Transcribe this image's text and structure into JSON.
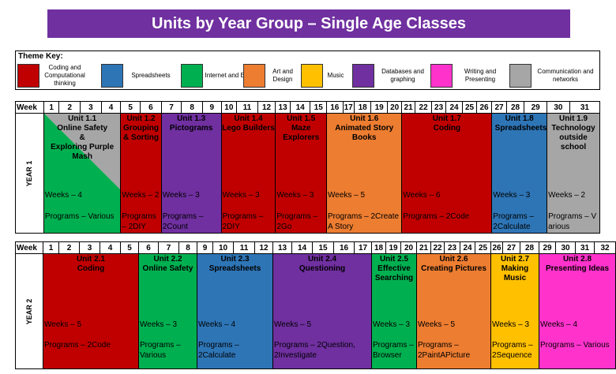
{
  "title": "Units by Year Group – Single Age Classes",
  "theme_key": {
    "title": "Theme Key:",
    "items": [
      {
        "label": "Coding and Computational thinking",
        "color": "#c00000"
      },
      {
        "label": "Spreadsheets",
        "color": "#2e75b6"
      },
      {
        "label": "Internet and Email",
        "color": "#00b050"
      },
      {
        "label": "Art and Design",
        "color": "#ed7d31"
      },
      {
        "label": "Music",
        "color": "#ffc000"
      },
      {
        "label": "Databases and graphing",
        "color": "#7030a0"
      },
      {
        "label": "Writing and Presenting",
        "color": "#ff33cc"
      },
      {
        "label": "Communication and networks",
        "color": "#a6a6a6"
      }
    ]
  },
  "year1": {
    "week_label": "Week",
    "year_label": "YEAR 1",
    "weeks": [
      "1",
      "2",
      "3",
      "4",
      "5",
      "6",
      "7",
      "8",
      "9",
      "10",
      "11",
      "12",
      "13",
      "14",
      "15",
      "16",
      "17",
      "18",
      "19",
      "20",
      "21",
      "22",
      "23",
      "24",
      "25",
      "26",
      "27",
      "28",
      "29",
      "30",
      "31"
    ],
    "units": [
      {
        "title": "Unit 1.1\nOnline Safety\n&\nExploring Purple Mash",
        "weeks_text": "Weeks – 4",
        "programs": "Programs – Various",
        "color": "#00b050",
        "color2": "#a6a6a6",
        "span": 4
      },
      {
        "title": "Unit 1.2\nGrouping & Sorting",
        "weeks_text": "Weeks – 2",
        "programs": "Programs – 2DIY",
        "color": "#c00000",
        "span": 2
      },
      {
        "title": "Unit 1.3\nPictograms",
        "weeks_text": "Weeks – 3",
        "programs": "Programs – 2Count",
        "color": "#7030a0",
        "span": 3
      },
      {
        "title": "Unit 1.4\nLego Builders",
        "weeks_text": "Weeks – 3",
        "programs": "Programs – 2DIY",
        "color": "#c00000",
        "span": 3
      },
      {
        "title": "Unit 1.5\nMaze Explorers",
        "weeks_text": "Weeks – 3",
        "programs": "Programs – 2Go",
        "color": "#c00000",
        "span": 3
      },
      {
        "title": "Unit 1.6\nAnimated Story Books",
        "weeks_text": "Weeks – 5",
        "programs": "Programs – 2Create A Story",
        "color": "#ed7d31",
        "span": 5
      },
      {
        "title": "Unit 1.7\nCoding",
        "weeks_text": "Weeks – 6",
        "programs": "Programs – 2Code",
        "color": "#c00000",
        "span": 6
      },
      {
        "title": "Unit 1.8\nSpreadsheets",
        "weeks_text": "Weeks – 3",
        "programs": "Programs – 2Calculate",
        "color": "#2e75b6",
        "span": 3
      },
      {
        "title": "Unit 1.9\nTechnology outside school",
        "weeks_text": "Weeks – 2",
        "programs": "Programs – Various",
        "color": "#a6a6a6",
        "span": 2
      }
    ]
  },
  "year2": {
    "week_label": "Week",
    "year_label": "YEAR 2",
    "weeks": [
      "1",
      "2",
      "3",
      "4",
      "5",
      "6",
      "7",
      "8",
      "9",
      "10",
      "11",
      "12",
      "13",
      "14",
      "15",
      "16",
      "17",
      "18",
      "19",
      "20",
      "21",
      "22",
      "23",
      "24",
      "25",
      "26",
      "27",
      "28",
      "29",
      "30",
      "31",
      "32"
    ],
    "units": [
      {
        "title": "Unit 2.1\nCoding",
        "weeks_text": "Weeks – 5",
        "programs": "Programs – 2Code",
        "color": "#c00000",
        "span": 5
      },
      {
        "title": "Unit 2.2\nOnline Safety",
        "weeks_text": "Weeks – 3",
        "programs": "Programs – Various",
        "color": "#00b050",
        "span": 3
      },
      {
        "title": "Unit 2.3\nSpreadsheets",
        "weeks_text": "Weeks – 4",
        "programs": "Programs – 2Calculate",
        "color": "#2e75b6",
        "span": 4
      },
      {
        "title": "Unit 2.4\nQuestioning",
        "weeks_text": "Weeks – 5",
        "programs": "Programs – 2Question, 2Investigate",
        "color": "#7030a0",
        "span": 5
      },
      {
        "title": "Unit 2.5\nEffective Searching",
        "weeks_text": "Weeks – 3",
        "programs": "Programs – Browser",
        "color": "#00b050",
        "span": 3
      },
      {
        "title": "Unit 2.6\nCreating Pictures",
        "weeks_text": "Weeks – 5",
        "programs": "Programs – 2PaintAPicture",
        "color": "#ed7d31",
        "span": 5
      },
      {
        "title": "Unit 2.7\nMaking Music",
        "weeks_text": "Weeks – 3",
        "programs": "Programs – 2Sequence",
        "color": "#ffc000",
        "span": 3
      },
      {
        "title": "Unit 2.8\nPresenting Ideas",
        "weeks_text": "Weeks – 4",
        "programs": "Programs – Various",
        "color": "#ff33cc",
        "span": 4
      }
    ]
  }
}
